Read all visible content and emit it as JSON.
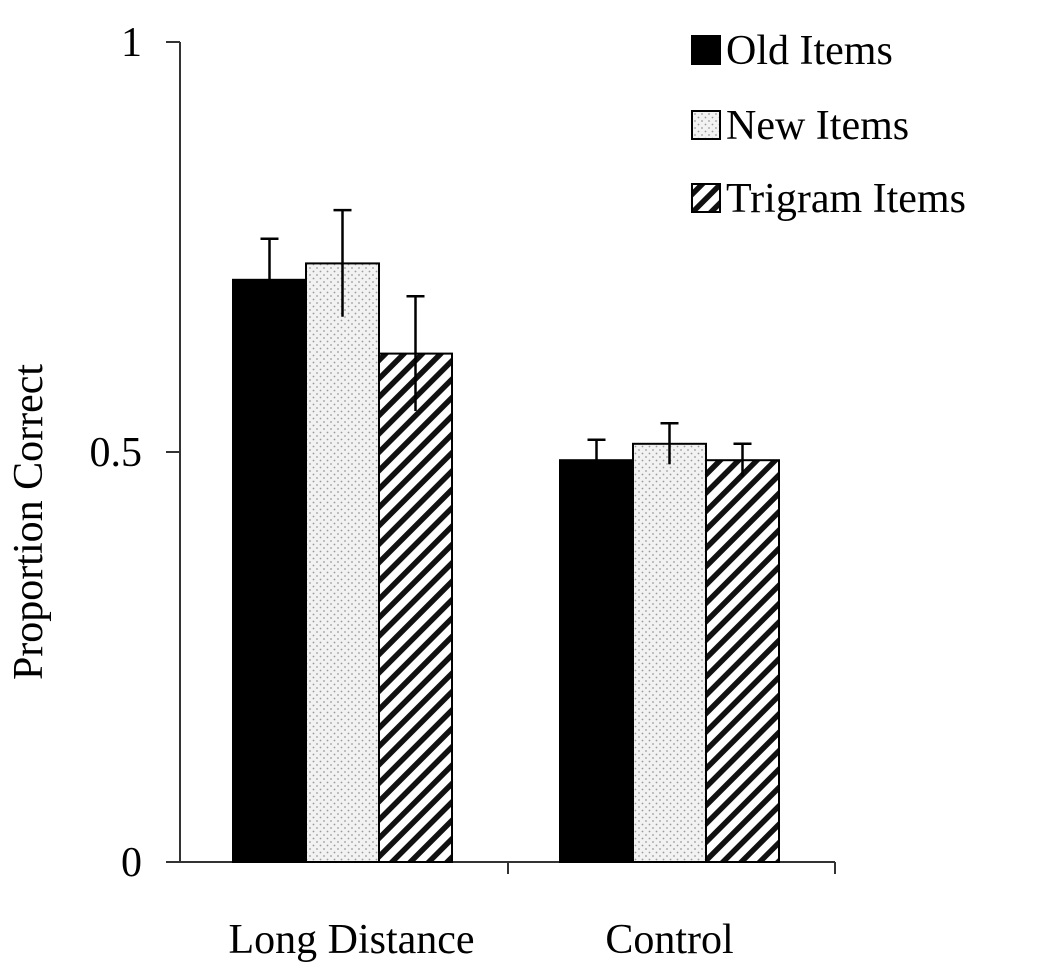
{
  "chart_data": {
    "type": "bar",
    "title": "",
    "xlabel": "",
    "ylabel": "Proportion Correct",
    "ylim": [
      0,
      1
    ],
    "yticks": [
      {
        "value": 0,
        "label": "0"
      },
      {
        "value": 0.5,
        "label": "0.5"
      },
      {
        "value": 1,
        "label": "1"
      }
    ],
    "categories": [
      "Long Distance",
      "Control"
    ],
    "series": [
      {
        "name": "Old Items",
        "pattern": "solid",
        "values": [
          0.71,
          0.49
        ],
        "errors": [
          0.05,
          0.025
        ]
      },
      {
        "name": "New Items",
        "pattern": "dots",
        "values": [
          0.73,
          0.51
        ],
        "errors": [
          0.065,
          0.025
        ]
      },
      {
        "name": "Trigram Items",
        "pattern": "hatch",
        "values": [
          0.62,
          0.49
        ],
        "errors": [
          0.07,
          0.02
        ]
      }
    ],
    "legend_position": "top-right",
    "grid": false,
    "colors": {
      "ink": "#000000",
      "background": "#ffffff",
      "dots_fill": "#ececec"
    }
  }
}
